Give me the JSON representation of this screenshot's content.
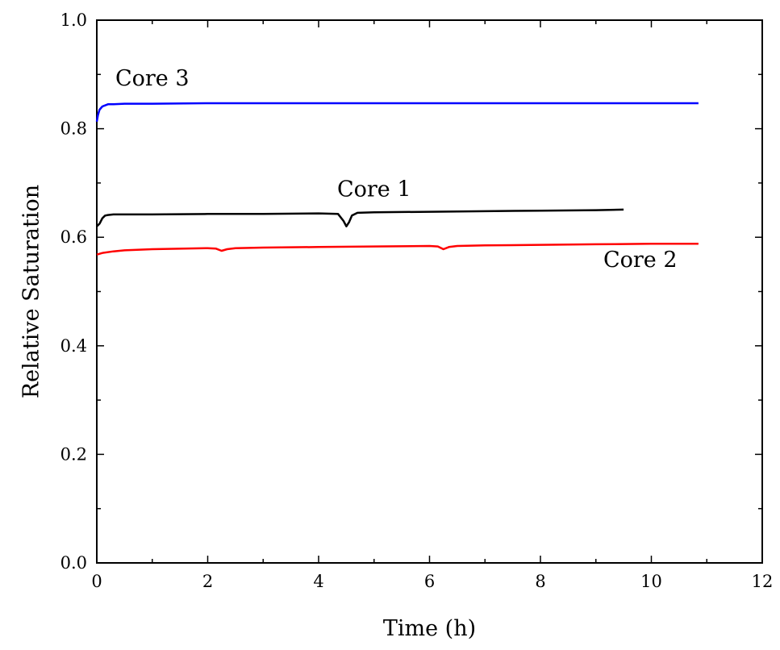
{
  "chart_data": {
    "type": "line",
    "title": "",
    "xlabel": "Time (h)",
    "ylabel": "Relative Saturation",
    "xlim": [
      0,
      12
    ],
    "ylim": [
      0.0,
      1.0
    ],
    "x_ticks": [
      "0",
      "2",
      "4",
      "6",
      "8",
      "10",
      "12"
    ],
    "y_ticks": [
      "0.0",
      "0.2",
      "0.4",
      "0.6",
      "0.8",
      "1.0"
    ],
    "grid": false,
    "legend": "none",
    "series": [
      {
        "name": "Core 3",
        "color": "#0000ff",
        "label_at": [
          1.0,
          0.88
        ],
        "x": [
          0.0,
          0.02,
          0.05,
          0.1,
          0.15,
          0.2,
          0.3,
          0.5,
          1.0,
          2.0,
          4.0,
          6.0,
          8.0,
          10.0,
          10.85
        ],
        "y": [
          0.813,
          0.825,
          0.835,
          0.841,
          0.843,
          0.845,
          0.845,
          0.846,
          0.846,
          0.847,
          0.847,
          0.847,
          0.847,
          0.847,
          0.847
        ]
      },
      {
        "name": "Core 1",
        "color": "#000000",
        "label_at": [
          5.0,
          0.675
        ],
        "x": [
          0.0,
          0.05,
          0.1,
          0.15,
          0.2,
          0.3,
          1.0,
          2.0,
          3.0,
          4.0,
          4.35,
          4.45,
          4.5,
          4.55,
          4.6,
          4.7,
          5.0,
          6.0,
          7.0,
          8.0,
          9.0,
          9.5
        ],
        "y": [
          0.62,
          0.625,
          0.635,
          0.64,
          0.641,
          0.642,
          0.642,
          0.643,
          0.643,
          0.644,
          0.643,
          0.63,
          0.62,
          0.628,
          0.64,
          0.645,
          0.646,
          0.647,
          0.648,
          0.649,
          0.65,
          0.651
        ]
      },
      {
        "name": "Core 2",
        "color": "#ff0000",
        "label_at": [
          9.8,
          0.545
        ],
        "x": [
          0.0,
          0.1,
          0.3,
          0.5,
          1.0,
          2.0,
          2.15,
          2.25,
          2.35,
          2.5,
          3.0,
          4.0,
          5.0,
          6.0,
          6.15,
          6.25,
          6.35,
          6.5,
          7.0,
          8.0,
          9.0,
          10.0,
          10.85
        ],
        "y": [
          0.568,
          0.571,
          0.574,
          0.576,
          0.578,
          0.58,
          0.579,
          0.575,
          0.578,
          0.58,
          0.581,
          0.582,
          0.583,
          0.584,
          0.583,
          0.578,
          0.582,
          0.584,
          0.585,
          0.586,
          0.587,
          0.588,
          0.588
        ]
      }
    ]
  }
}
